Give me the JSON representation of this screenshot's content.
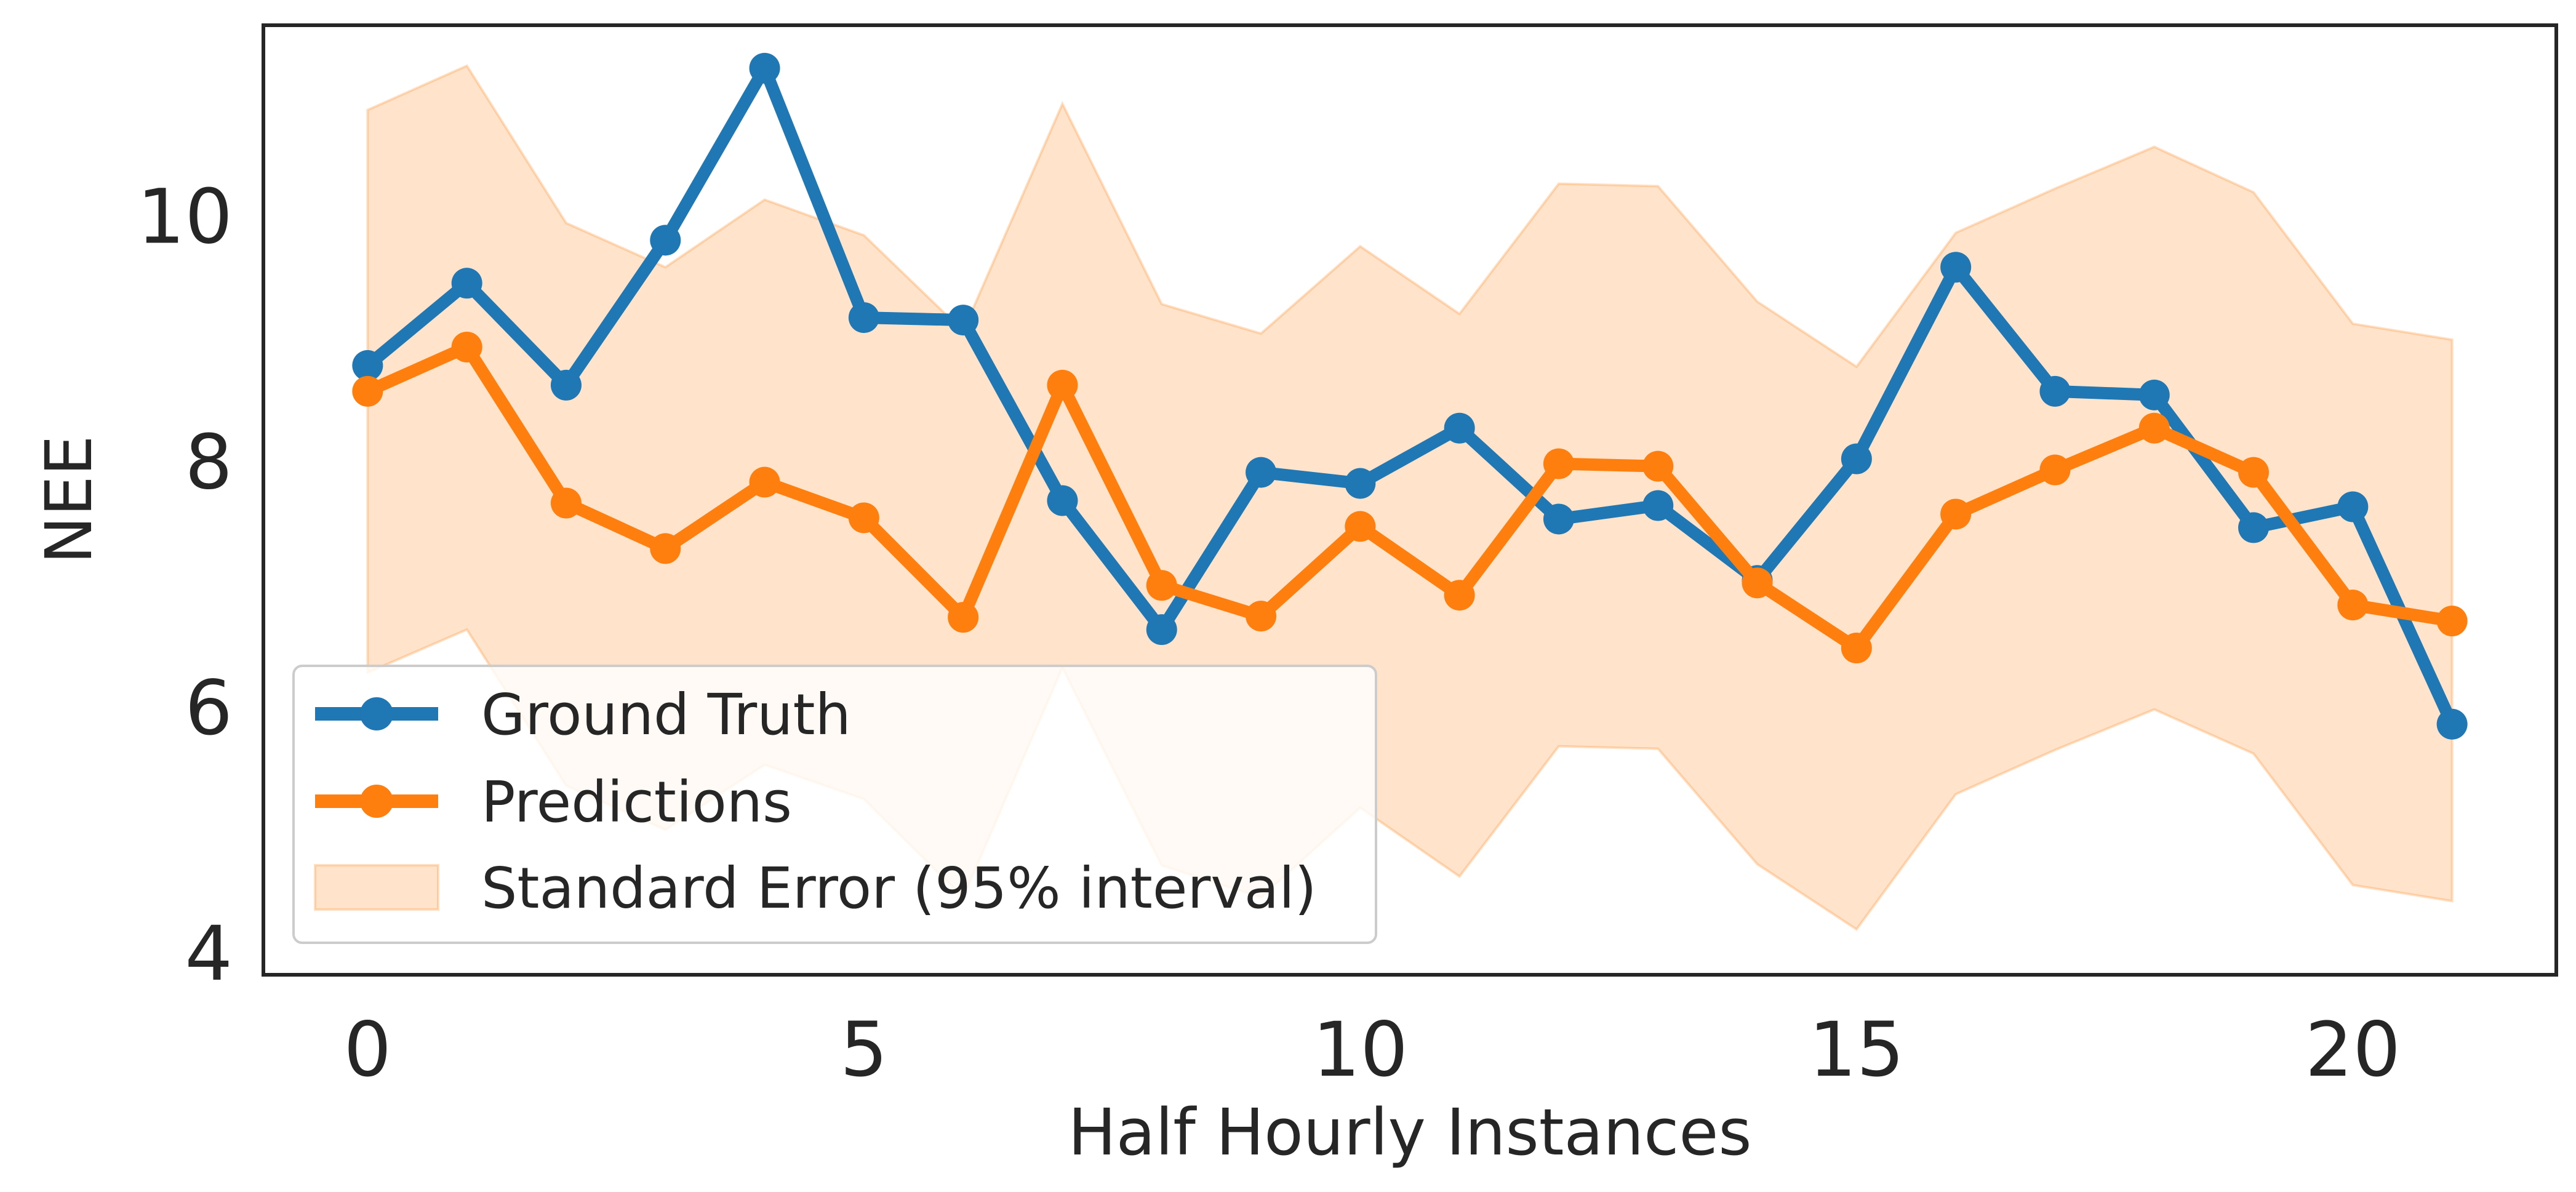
{
  "chart_data": {
    "type": "line",
    "title": "",
    "xlabel": "Half Hourly Instances",
    "ylabel": "NEE",
    "xlim": [
      -1.05,
      22.05
    ],
    "ylim": [
      3.82,
      11.55
    ],
    "xticks": [
      0,
      5,
      10,
      15,
      20
    ],
    "yticks": [
      4,
      6,
      8,
      10
    ],
    "grid": false,
    "legend_position": "lower-left",
    "x": [
      0,
      1,
      2,
      3,
      4,
      5,
      6,
      7,
      8,
      9,
      10,
      11,
      12,
      13,
      14,
      15,
      16,
      17,
      18,
      19,
      20,
      21
    ],
    "series": [
      {
        "name": "Ground Truth",
        "color": "#1f77b4",
        "marker": "circle",
        "values": [
          8.78,
          9.45,
          8.62,
          9.8,
          11.2,
          9.17,
          9.15,
          7.68,
          6.63,
          7.91,
          7.82,
          8.27,
          7.53,
          7.64,
          7.03,
          8.02,
          9.58,
          8.57,
          8.54,
          7.46,
          7.63,
          5.86
        ]
      },
      {
        "name": "Predictions",
        "color": "#ff7f0e",
        "marker": "circle",
        "values": [
          8.57,
          8.93,
          7.66,
          7.29,
          7.83,
          7.54,
          6.73,
          8.62,
          6.99,
          6.74,
          7.47,
          6.91,
          7.98,
          7.96,
          7.01,
          6.48,
          7.57,
          7.93,
          8.27,
          7.91,
          6.83,
          6.7
        ]
      }
    ],
    "band": {
      "name": "Standard Error (95% interval)",
      "color": "#ff7f0e",
      "opacity": 0.22,
      "upper": [
        10.86,
        11.22,
        9.94,
        9.58,
        10.13,
        9.84,
        9.06,
        10.91,
        9.28,
        9.04,
        9.75,
        9.2,
        10.26,
        10.24,
        9.3,
        8.77,
        9.86,
        10.22,
        10.56,
        10.19,
        9.12,
        8.99
      ],
      "lower": [
        6.28,
        6.63,
        5.36,
        5.0,
        5.53,
        5.25,
        4.45,
        6.32,
        4.71,
        4.45,
        5.18,
        4.62,
        5.68,
        5.66,
        4.72,
        4.19,
        5.29,
        5.65,
        5.98,
        5.62,
        4.55,
        4.42
      ]
    }
  }
}
